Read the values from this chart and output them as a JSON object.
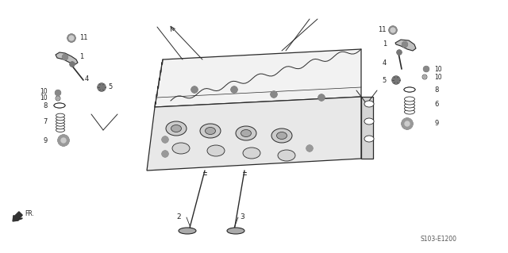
{
  "bg_color": "#ffffff",
  "line_color": "#2a2a2a",
  "diagram_code": "S103-E1200",
  "fig_w": 6.4,
  "fig_h": 3.19,
  "dpi": 100
}
